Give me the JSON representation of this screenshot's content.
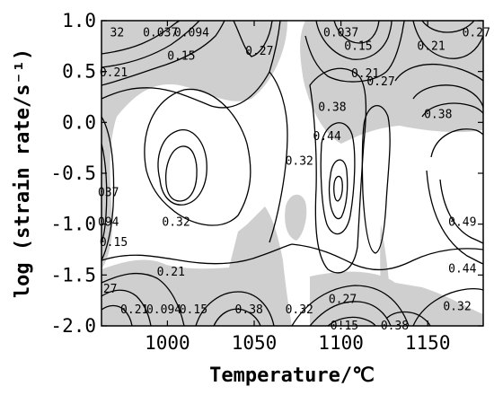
{
  "chart_data": {
    "type": "contour",
    "xlabel": "Temperature/℃",
    "ylabel": "log (strain rate/s⁻¹)",
    "xlim": [
      962,
      1182
    ],
    "ylim": [
      -2.0,
      1.0
    ],
    "x_ticks": [
      1000,
      1050,
      1100,
      1150
    ],
    "y_ticks": [
      "1.0",
      "0.5",
      "0.0",
      "-0.5",
      "-1.0",
      "-1.5",
      "-2.0"
    ],
    "y_tick_values": [
      1.0,
      0.5,
      0.0,
      -0.5,
      -1.0,
      -1.5,
      -2.0
    ],
    "contour_labels": [
      {
        "text": "32",
        "x": 971,
        "y": 0.88
      },
      {
        "text": "0.037",
        "x": 996,
        "y": 0.88
      },
      {
        "text": "0.094",
        "x": 1014,
        "y": 0.88
      },
      {
        "text": "0.15",
        "x": 1008,
        "y": 0.65
      },
      {
        "text": "0.27",
        "x": 1053,
        "y": 0.7
      },
      {
        "text": "0.037",
        "x": 1100,
        "y": 0.88
      },
      {
        "text": "0.15",
        "x": 1110,
        "y": 0.75
      },
      {
        "text": "0.21",
        "x": 1152,
        "y": 0.75
      },
      {
        "text": "0.27",
        "x": 1178,
        "y": 0.88
      },
      {
        "text": "0.21",
        "x": 969,
        "y": 0.49
      },
      {
        "text": "0.21",
        "x": 1114,
        "y": 0.48
      },
      {
        "text": "0.27",
        "x": 1123,
        "y": 0.4
      },
      {
        "text": "0.38",
        "x": 1095,
        "y": 0.15
      },
      {
        "text": "0.38",
        "x": 1156,
        "y": 0.08
      },
      {
        "text": "0.44",
        "x": 1092,
        "y": -0.14
      },
      {
        "text": "0.32",
        "x": 1076,
        "y": -0.38
      },
      {
        "text": "037",
        "x": 966,
        "y": -0.69
      },
      {
        "text": "0.32",
        "x": 1005,
        "y": -0.98
      },
      {
        "text": "094",
        "x": 966,
        "y": -0.98
      },
      {
        "text": "0.49",
        "x": 1170,
        "y": -0.98
      },
      {
        "text": "0.15",
        "x": 969,
        "y": -1.18
      },
      {
        "text": "0.21",
        "x": 1002,
        "y": -1.47
      },
      {
        "text": "0.44",
        "x": 1170,
        "y": -1.44
      },
      {
        "text": "27",
        "x": 967,
        "y": -1.64
      },
      {
        "text": "0.21",
        "x": 981,
        "y": -1.84
      },
      {
        "text": "0.094",
        "x": 998,
        "y": -1.84
      },
      {
        "text": "0.15",
        "x": 1015,
        "y": -1.84
      },
      {
        "text": "0.38",
        "x": 1047,
        "y": -1.84
      },
      {
        "text": "0.32",
        "x": 1076,
        "y": -1.84
      },
      {
        "text": "0.27",
        "x": 1101,
        "y": -1.74
      },
      {
        "text": "0.32",
        "x": 1167,
        "y": -1.81
      },
      {
        "text": "0.15",
        "x": 1102,
        "y": -2.0
      },
      {
        "text": "0.38",
        "x": 1131,
        "y": -2.0
      }
    ]
  }
}
